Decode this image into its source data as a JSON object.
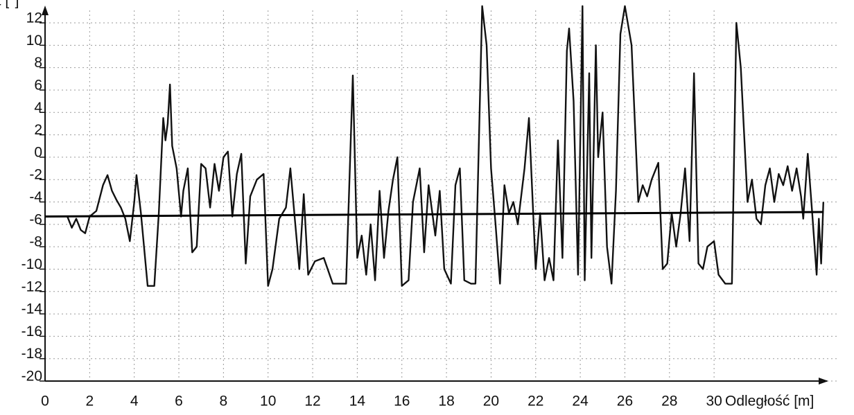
{
  "chart_data": {
    "type": "line",
    "ylabel": "Kąt [°]",
    "xlabel": "Odległość [m]",
    "xlim": [
      0,
      35
    ],
    "ylim": [
      -20,
      14
    ],
    "xticks": [
      0,
      2,
      4,
      6,
      8,
      10,
      12,
      14,
      16,
      18,
      20,
      22,
      24,
      26,
      28,
      30
    ],
    "yticks": [
      -20,
      -18,
      -16,
      -14,
      -12,
      -10,
      -8,
      -6,
      -4,
      -2,
      0,
      2,
      4,
      6,
      8,
      10,
      12
    ],
    "grid": true,
    "series": [
      {
        "color": "#111111",
        "x": [
          1.0,
          1.2,
          1.4,
          1.6,
          1.8,
          2.0,
          2.3,
          2.6,
          2.8,
          3.0,
          3.2,
          3.4,
          3.6,
          3.8,
          4.0,
          4.1,
          4.3,
          4.6,
          4.9,
          5.1,
          5.3,
          5.4,
          5.5,
          5.6,
          5.7,
          5.9,
          6.1,
          6.2,
          6.4,
          6.6,
          6.8,
          7.0,
          7.2,
          7.4,
          7.6,
          7.8,
          8.0,
          8.2,
          8.4,
          8.6,
          8.8,
          9.0,
          9.2,
          9.5,
          9.8,
          10.0,
          10.2,
          10.5,
          10.8,
          11.0,
          11.2,
          11.4,
          11.6,
          11.8,
          12.1,
          12.5,
          12.9,
          13.5,
          13.8,
          14.0,
          14.2,
          14.4,
          14.6,
          14.8,
          15.0,
          15.2,
          15.4,
          15.6,
          15.8,
          16.0,
          16.3,
          16.5,
          16.8,
          17.0,
          17.2,
          17.5,
          17.7,
          17.9,
          18.2,
          18.4,
          18.6,
          18.8,
          19.1,
          19.3,
          19.6,
          19.8,
          20.0,
          20.2,
          20.4,
          20.6,
          20.8,
          21.0,
          21.2,
          21.5,
          21.7,
          21.8,
          22.0,
          22.2,
          22.4,
          22.6,
          22.8,
          23.0,
          23.2,
          23.4,
          23.5,
          23.7,
          23.9,
          24.1,
          24.2,
          24.4,
          24.5,
          24.7,
          24.8,
          25.0,
          25.2,
          25.4,
          25.6,
          25.8,
          26.0,
          26.3,
          26.6,
          26.8,
          27.0,
          27.2,
          27.5,
          27.7,
          27.9,
          28.1,
          28.3,
          28.5,
          28.7,
          28.9,
          29.1,
          29.3,
          29.5,
          29.7,
          30.0,
          30.2,
          30.5,
          30.8,
          31.0,
          31.2,
          31.5,
          31.7,
          31.9,
          32.1,
          32.3,
          32.5,
          32.7,
          32.9,
          33.1,
          33.3,
          33.5,
          33.7,
          33.9,
          34.0,
          34.2,
          34.4,
          34.6,
          34.7,
          34.8,
          34.9
        ],
        "values": [
          -5.3,
          -6.3,
          -5.5,
          -6.5,
          -6.8,
          -5.3,
          -4.8,
          -2.5,
          -1.6,
          -3.0,
          -3.8,
          -4.5,
          -5.5,
          -7.5,
          -4.0,
          -1.6,
          -5.0,
          -11.5,
          -11.5,
          -5.0,
          3.5,
          1.5,
          3.0,
          6.5,
          1.0,
          -1.0,
          -5.3,
          -3.0,
          -1.0,
          -8.5,
          -8.0,
          -0.6,
          -1.0,
          -4.5,
          -0.6,
          -3.0,
          0.0,
          0.5,
          -5.3,
          -1.5,
          0.3,
          -9.5,
          -3.5,
          -2.0,
          -1.5,
          -11.5,
          -10.0,
          -5.5,
          -4.5,
          -1.0,
          -5.5,
          -10.0,
          -3.3,
          -10.5,
          -9.3,
          -9.0,
          -11.3,
          -11.3,
          7.3,
          -9.0,
          -7.0,
          -10.5,
          -6.0,
          -11.0,
          -3.0,
          -9.0,
          -4.8,
          -2.0,
          0.0,
          -11.5,
          -11.0,
          -4.0,
          -1.0,
          -8.5,
          -2.5,
          -7.0,
          -3.0,
          -10.0,
          -11.3,
          -2.5,
          -1.0,
          -11.0,
          -11.3,
          -11.3,
          13.5,
          10.0,
          -1.0,
          -6.0,
          -11.3,
          -2.5,
          -5.0,
          -4.0,
          -6.0,
          -1.0,
          3.5,
          -1.0,
          -10.0,
          -5.0,
          -11.0,
          -9.0,
          -11.0,
          1.5,
          -9.0,
          9.5,
          11.5,
          5.0,
          -10.5,
          13.5,
          -11.0,
          7.5,
          -9.0,
          10.0,
          0.0,
          4.0,
          -8.0,
          -11.3,
          -3.0,
          11.0,
          13.5,
          10.0,
          -4.0,
          -2.5,
          -3.5,
          -2.0,
          -0.5,
          -10.0,
          -9.5,
          -5.0,
          -8.0,
          -5.0,
          -1.0,
          -7.5,
          7.5,
          -9.5,
          -10.0,
          -8.0,
          -7.5,
          -10.5,
          -11.3,
          -11.3,
          12.0,
          8.0,
          -4.0,
          -2.0,
          -5.5,
          -6.0,
          -2.5,
          -1.0,
          -4.0,
          -1.5,
          -2.5,
          -0.8,
          -3.0,
          -1.0,
          -3.5,
          -5.5,
          0.3,
          -5.0,
          -10.5,
          -5.5,
          -9.5,
          -4.0
        ]
      },
      {
        "color": "#000000",
        "x": [
          0.0,
          34.9
        ],
        "values": [
          -5.3,
          -4.9
        ]
      }
    ]
  }
}
